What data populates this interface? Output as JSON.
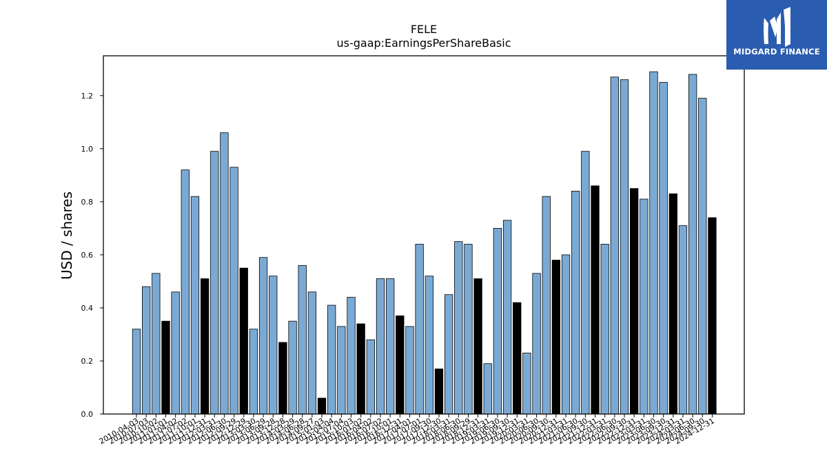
{
  "chart_data": {
    "type": "bar",
    "title": "FELE",
    "subtitle": "us-gaap:EarningsPerShareBasic",
    "xlabel": "",
    "ylabel": "USD / shares",
    "ylim": [
      0,
      1.35
    ],
    "yticks": [
      "0.0",
      "0.2",
      "0.4",
      "0.6",
      "0.8",
      "1.0",
      "1.2"
    ],
    "grid": false,
    "colors": {
      "quarter": "#7aaad4",
      "annual": "#000000",
      "edge": "#000000"
    },
    "categories": [
      "2010-04-03",
      "2010-07-03",
      "2010-10-02",
      "2011-01-01",
      "2011-04-02",
      "2011-07-02",
      "2011-10-01",
      "2011-12-31",
      "2012-03-31",
      "2012-06-30",
      "2012-09-29",
      "2012-12-29",
      "2013-03-30",
      "2013-06-29",
      "2013-09-28",
      "2013-12-28",
      "2014-03-29",
      "2014-06-28",
      "2014-09-27",
      "2015-01-03",
      "2015-04-04",
      "2015-07-04",
      "2015-10-03",
      "2016-01-02",
      "2016-04-02",
      "2016-07-02",
      "2016-10-01",
      "2016-12-31",
      "2017-04-01",
      "2017-07-01",
      "2017-09-30",
      "2017-12-30",
      "2018-03-31",
      "2018-06-30",
      "2018-09-29",
      "2018-12-31",
      "2019-03-31",
      "2019-06-30",
      "2019-09-30",
      "2019-12-31",
      "2020-03-31",
      "2020-06-30",
      "2020-09-30",
      "2020-12-31",
      "2021-03-31",
      "2021-06-30",
      "2021-09-30",
      "2021-12-31",
      "2022-03-31",
      "2022-06-30",
      "2022-09-30",
      "2022-12-31",
      "2023-03-31",
      "2023-06-30",
      "2023-09-30",
      "2023-12-31",
      "2024-03-31",
      "2024-06-30",
      "2024-09-30",
      "2024-12-31"
    ],
    "values": [
      0.32,
      0.48,
      0.53,
      0.35,
      0.46,
      0.92,
      0.82,
      0.51,
      0.99,
      1.06,
      0.93,
      0.55,
      0.32,
      0.59,
      0.52,
      0.27,
      0.35,
      0.56,
      0.46,
      0.06,
      0.41,
      0.33,
      0.44,
      0.34,
      0.28,
      0.51,
      0.51,
      0.37,
      0.33,
      0.64,
      0.52,
      0.17,
      0.45,
      0.65,
      0.64,
      0.51,
      0.19,
      0.7,
      0.73,
      0.42,
      0.23,
      0.53,
      0.82,
      0.58,
      0.6,
      0.84,
      0.99,
      0.86,
      0.64,
      1.27,
      1.26,
      0.85,
      0.81,
      1.29,
      1.25,
      0.83,
      0.71,
      1.28,
      1.19,
      0.74
    ],
    "period_type": [
      "Q",
      "Q",
      "Q",
      "FY",
      "Q",
      "Q",
      "Q",
      "FY",
      "Q",
      "Q",
      "Q",
      "FY",
      "Q",
      "Q",
      "Q",
      "FY",
      "Q",
      "Q",
      "Q",
      "FY",
      "Q",
      "Q",
      "Q",
      "FY",
      "Q",
      "Q",
      "Q",
      "FY",
      "Q",
      "Q",
      "Q",
      "FY",
      "Q",
      "Q",
      "Q",
      "FY",
      "Q",
      "Q",
      "Q",
      "FY",
      "Q",
      "Q",
      "Q",
      "FY",
      "Q",
      "Q",
      "Q",
      "FY",
      "Q",
      "Q",
      "Q",
      "FY",
      "Q",
      "Q",
      "Q",
      "FY",
      "Q",
      "Q",
      "Q",
      "FY"
    ]
  },
  "logo": {
    "text": "MIDGARD FINANCE",
    "color": "#2a5db0"
  }
}
